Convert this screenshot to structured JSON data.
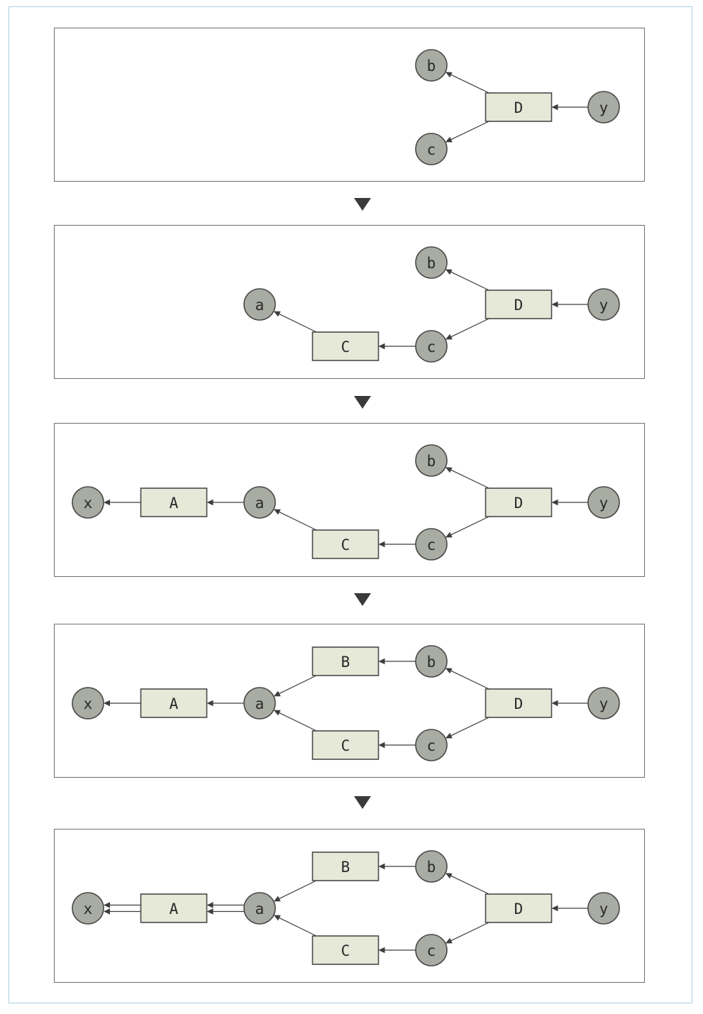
{
  "diagram": {
    "panels": [
      {
        "nodes": [
          {
            "id": "b",
            "label": "b",
            "kind": "variable"
          },
          {
            "id": "D",
            "label": "D",
            "kind": "function"
          },
          {
            "id": "y",
            "label": "y",
            "kind": "variable"
          },
          {
            "id": "c",
            "label": "c",
            "kind": "variable"
          }
        ],
        "edges": [
          {
            "from": "y",
            "to": "D"
          },
          {
            "from": "D",
            "to": "b"
          },
          {
            "from": "D",
            "to": "c"
          }
        ]
      },
      {
        "nodes": [
          {
            "id": "b",
            "label": "b",
            "kind": "variable"
          },
          {
            "id": "D",
            "label": "D",
            "kind": "function"
          },
          {
            "id": "y",
            "label": "y",
            "kind": "variable"
          },
          {
            "id": "c",
            "label": "c",
            "kind": "variable"
          },
          {
            "id": "C",
            "label": "C",
            "kind": "function"
          },
          {
            "id": "a",
            "label": "a",
            "kind": "variable"
          }
        ],
        "edges": [
          {
            "from": "y",
            "to": "D"
          },
          {
            "from": "D",
            "to": "b"
          },
          {
            "from": "D",
            "to": "c"
          },
          {
            "from": "c",
            "to": "C"
          },
          {
            "from": "C",
            "to": "a"
          }
        ]
      },
      {
        "nodes": [
          {
            "id": "b",
            "label": "b",
            "kind": "variable"
          },
          {
            "id": "D",
            "label": "D",
            "kind": "function"
          },
          {
            "id": "y",
            "label": "y",
            "kind": "variable"
          },
          {
            "id": "c",
            "label": "c",
            "kind": "variable"
          },
          {
            "id": "C",
            "label": "C",
            "kind": "function"
          },
          {
            "id": "a",
            "label": "a",
            "kind": "variable"
          },
          {
            "id": "A",
            "label": "A",
            "kind": "function"
          },
          {
            "id": "x",
            "label": "x",
            "kind": "variable"
          }
        ],
        "edges": [
          {
            "from": "y",
            "to": "D"
          },
          {
            "from": "D",
            "to": "b"
          },
          {
            "from": "D",
            "to": "c"
          },
          {
            "from": "c",
            "to": "C"
          },
          {
            "from": "C",
            "to": "a"
          },
          {
            "from": "a",
            "to": "A"
          },
          {
            "from": "A",
            "to": "x"
          }
        ]
      },
      {
        "nodes": [
          {
            "id": "b",
            "label": "b",
            "kind": "variable"
          },
          {
            "id": "D",
            "label": "D",
            "kind": "function"
          },
          {
            "id": "y",
            "label": "y",
            "kind": "variable"
          },
          {
            "id": "c",
            "label": "c",
            "kind": "variable"
          },
          {
            "id": "C",
            "label": "C",
            "kind": "function"
          },
          {
            "id": "B",
            "label": "B",
            "kind": "function"
          },
          {
            "id": "a",
            "label": "a",
            "kind": "variable"
          },
          {
            "id": "A",
            "label": "A",
            "kind": "function"
          },
          {
            "id": "x",
            "label": "x",
            "kind": "variable"
          }
        ],
        "edges": [
          {
            "from": "y",
            "to": "D"
          },
          {
            "from": "D",
            "to": "b"
          },
          {
            "from": "D",
            "to": "c"
          },
          {
            "from": "b",
            "to": "B"
          },
          {
            "from": "c",
            "to": "C"
          },
          {
            "from": "B",
            "to": "a"
          },
          {
            "from": "C",
            "to": "a"
          },
          {
            "from": "a",
            "to": "A"
          },
          {
            "from": "A",
            "to": "x"
          }
        ]
      },
      {
        "nodes": [
          {
            "id": "b",
            "label": "b",
            "kind": "variable"
          },
          {
            "id": "D",
            "label": "D",
            "kind": "function"
          },
          {
            "id": "y",
            "label": "y",
            "kind": "variable"
          },
          {
            "id": "c",
            "label": "c",
            "kind": "variable"
          },
          {
            "id": "C",
            "label": "C",
            "kind": "function"
          },
          {
            "id": "B",
            "label": "B",
            "kind": "function"
          },
          {
            "id": "a",
            "label": "a",
            "kind": "variable"
          },
          {
            "id": "A",
            "label": "A",
            "kind": "function"
          },
          {
            "id": "x",
            "label": "x",
            "kind": "variable"
          }
        ],
        "edges": [
          {
            "from": "y",
            "to": "D"
          },
          {
            "from": "D",
            "to": "b"
          },
          {
            "from": "D",
            "to": "c"
          },
          {
            "from": "b",
            "to": "B"
          },
          {
            "from": "c",
            "to": "C"
          },
          {
            "from": "B",
            "to": "a"
          },
          {
            "from": "C",
            "to": "a"
          },
          {
            "from": "a",
            "to": "A",
            "double": true
          },
          {
            "from": "A",
            "to": "x",
            "double": true
          }
        ]
      }
    ],
    "colors": {
      "variable_fill": "#a8aca2",
      "function_fill": "#e6e8d8",
      "stroke": "#4a4a4a",
      "edge": "#3e3e3e",
      "page_border": "#a9cfe4",
      "step_arrow": "#3a3a3a"
    }
  }
}
